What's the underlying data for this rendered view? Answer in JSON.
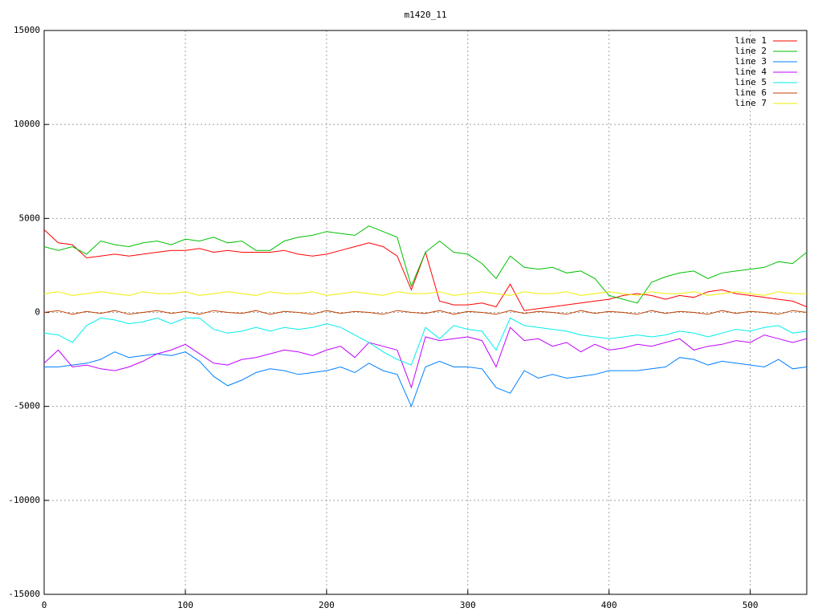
{
  "chart_data": {
    "type": "line",
    "title": "m1420_11",
    "x": [
      0,
      10,
      20,
      30,
      40,
      50,
      60,
      70,
      80,
      90,
      100,
      110,
      120,
      130,
      140,
      150,
      160,
      170,
      180,
      190,
      200,
      210,
      220,
      230,
      240,
      250,
      260,
      270,
      280,
      290,
      300,
      310,
      320,
      330,
      340,
      350,
      360,
      370,
      380,
      390,
      400,
      410,
      420,
      430,
      440,
      450,
      460,
      470,
      480,
      490,
      500,
      510,
      520,
      530,
      540
    ],
    "series": [
      {
        "name": "line 1",
        "color": "#ff0000",
        "values": [
          4400,
          3700,
          3600,
          2900,
          3000,
          3100,
          3000,
          3100,
          3200,
          3300,
          3300,
          3400,
          3200,
          3300,
          3200,
          3200,
          3200,
          3300,
          3100,
          3000,
          3100,
          3300,
          3500,
          3700,
          3500,
          3000,
          1200,
          3200,
          600,
          400,
          400,
          500,
          300,
          1500,
          100,
          200,
          300,
          400,
          500,
          600,
          700,
          900,
          1000,
          900,
          700,
          900,
          800,
          1100,
          1200,
          1000,
          900,
          800,
          700,
          600,
          300
        ]
      },
      {
        "name": "line 2",
        "color": "#00c000",
        "values": [
          3500,
          3300,
          3500,
          3100,
          3800,
          3600,
          3500,
          3700,
          3800,
          3600,
          3900,
          3800,
          4000,
          3700,
          3800,
          3300,
          3300,
          3800,
          4000,
          4100,
          4300,
          4200,
          4100,
          4600,
          4300,
          4000,
          1400,
          3200,
          3800,
          3200,
          3100,
          2600,
          1800,
          3000,
          2400,
          2300,
          2400,
          2100,
          2200,
          1800,
          900,
          700,
          500,
          1600,
          1900,
          2100,
          2200,
          1800,
          2100,
          2200,
          2300,
          2400,
          2700,
          2600,
          3200
        ]
      },
      {
        "name": "line 3",
        "color": "#0080ff",
        "values": [
          -2900,
          -2900,
          -2800,
          -2700,
          -2500,
          -2100,
          -2400,
          -2300,
          -2200,
          -2300,
          -2100,
          -2600,
          -3400,
          -3900,
          -3600,
          -3200,
          -3000,
          -3100,
          -3300,
          -3200,
          -3100,
          -2900,
          -3200,
          -2700,
          -3100,
          -3300,
          -5000,
          -2900,
          -2600,
          -2900,
          -2900,
          -3000,
          -4000,
          -4300,
          -3100,
          -3500,
          -3300,
          -3500,
          -3400,
          -3300,
          -3100,
          -3100,
          -3100,
          -3000,
          -2900,
          -2400,
          -2500,
          -2800,
          -2600,
          -2700,
          -2800,
          -2900,
          -2500,
          -3000,
          -2900
        ]
      },
      {
        "name": "line 4",
        "color": "#c000ff",
        "values": [
          -2700,
          -2000,
          -2900,
          -2800,
          -3000,
          -3100,
          -2900,
          -2600,
          -2200,
          -2000,
          -1700,
          -2200,
          -2700,
          -2800,
          -2500,
          -2400,
          -2200,
          -2000,
          -2100,
          -2300,
          -2000,
          -1800,
          -2400,
          -1600,
          -1800,
          -2000,
          -4000,
          -1300,
          -1500,
          -1400,
          -1300,
          -1500,
          -2900,
          -800,
          -1500,
          -1400,
          -1800,
          -1600,
          -2100,
          -1700,
          -2000,
          -1900,
          -1700,
          -1800,
          -1600,
          -1400,
          -2000,
          -1800,
          -1700,
          -1500,
          -1600,
          -1200,
          -1400,
          -1600,
          -1400
        ]
      },
      {
        "name": "line 5",
        "color": "#00eeee",
        "values": [
          -1100,
          -1200,
          -1600,
          -700,
          -300,
          -400,
          -600,
          -500,
          -300,
          -600,
          -300,
          -300,
          -900,
          -1100,
          -1000,
          -800,
          -1000,
          -800,
          -900,
          -800,
          -600,
          -800,
          -1200,
          -1600,
          -2100,
          -2500,
          -2800,
          -800,
          -1400,
          -700,
          -900,
          -1000,
          -2000,
          -300,
          -700,
          -800,
          -900,
          -1000,
          -1200,
          -1300,
          -1400,
          -1300,
          -1200,
          -1300,
          -1200,
          -1000,
          -1100,
          -1300,
          -1100,
          -900,
          -1000,
          -800,
          -700,
          -1100,
          -1000
        ]
      },
      {
        "name": "line 6",
        "color": "#c04000",
        "values": [
          0,
          100,
          -100,
          50,
          -50,
          100,
          -100,
          0,
          100,
          -50,
          50,
          -100,
          100,
          0,
          -50,
          100,
          -100,
          50,
          0,
          -100,
          100,
          -50,
          50,
          0,
          -100,
          100,
          0,
          -50,
          100,
          -100,
          50,
          0,
          -100,
          100,
          -50,
          50,
          0,
          -100,
          100,
          -50,
          50,
          0,
          -100,
          100,
          -50,
          50,
          0,
          -100,
          100,
          -50,
          50,
          0,
          -100,
          100,
          0
        ]
      },
      {
        "name": "line 7",
        "color": "#eeee00",
        "values": [
          1000,
          1100,
          900,
          1000,
          1100,
          1000,
          900,
          1100,
          1000,
          1000,
          1100,
          900,
          1000,
          1100,
          1000,
          900,
          1100,
          1000,
          1000,
          1100,
          900,
          1000,
          1100,
          1000,
          900,
          1100,
          1000,
          1000,
          1100,
          900,
          1000,
          1100,
          1000,
          900,
          1100,
          1000,
          1000,
          1100,
          900,
          1000,
          1100,
          1000,
          900,
          1100,
          1000,
          1000,
          1100,
          900,
          1000,
          1100,
          1000,
          900,
          1100,
          1000,
          1000
        ]
      }
    ],
    "xlim": [
      0,
      540
    ],
    "xticks": [
      0,
      100,
      200,
      300,
      400,
      500
    ],
    "ylim": [
      -15000,
      15000
    ],
    "yticks": [
      -15000,
      -10000,
      -5000,
      0,
      5000,
      10000,
      15000
    ],
    "grid": true,
    "legend": "top-right"
  }
}
